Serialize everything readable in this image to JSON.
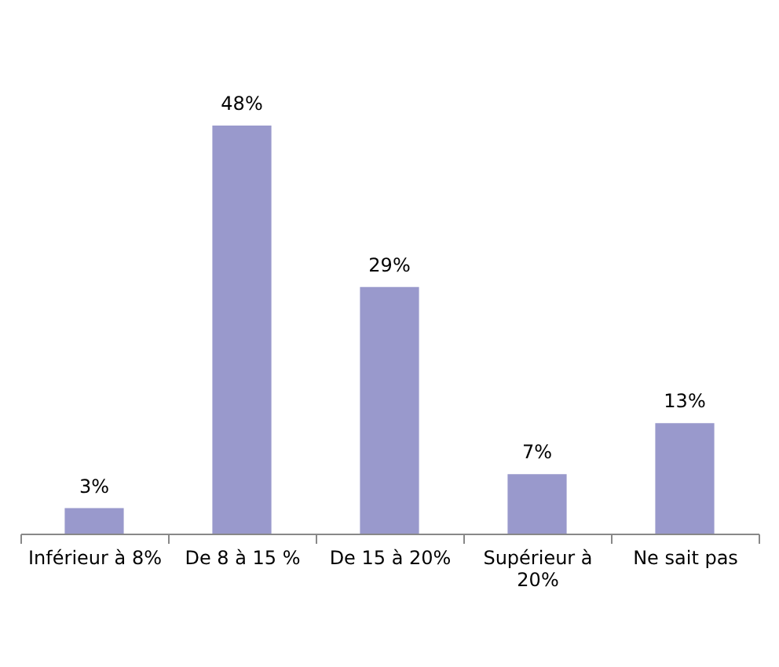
{
  "chart_data": {
    "type": "bar",
    "categories": [
      "Inférieur à 8%",
      "De 8 à 15 %",
      "De 15 à 20%",
      "Supérieur à 20%",
      "Ne sait pas"
    ],
    "values": [
      3,
      48,
      29,
      7,
      13
    ],
    "color": "#9999cc",
    "value_labels": [
      "3%",
      "48%",
      "29%",
      "7%",
      "13%"
    ]
  }
}
